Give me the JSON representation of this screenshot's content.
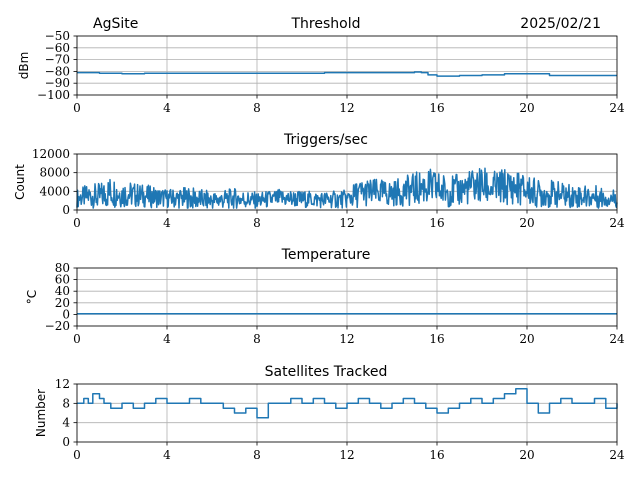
{
  "header": {
    "site": "AgSite",
    "date": "2025/02/21"
  },
  "colors": {
    "series": "#1f77b4",
    "grid": "#b0b0b0"
  },
  "chart_data": [
    {
      "type": "line",
      "title": "Threshold",
      "ylabel": "dBm",
      "xlim": [
        0,
        24
      ],
      "ylim": [
        -100,
        -50
      ],
      "xticks": [
        0,
        4,
        8,
        12,
        16,
        20,
        24
      ],
      "xtick_labels": [
        "0",
        "4",
        "8",
        "12",
        "16",
        "20",
        "24"
      ],
      "yticks": [
        -100,
        -90,
        -80,
        -70,
        -60,
        -50
      ],
      "ytick_labels": [
        "−100",
        "−90",
        "−80",
        "−70",
        "−60",
        "−50"
      ],
      "grid": true,
      "series": [
        {
          "x": [
            0,
            1,
            2,
            3,
            4,
            5,
            6,
            7,
            8,
            9,
            10,
            11,
            12,
            13,
            14,
            15,
            15.3,
            15.6,
            16,
            17,
            18,
            19,
            20,
            20.5,
            21,
            22,
            23,
            24
          ],
          "y": [
            -81,
            -81.5,
            -82,
            -81.5,
            -81.5,
            -81.5,
            -81.5,
            -81.5,
            -81.5,
            -81.5,
            -81.5,
            -81,
            -81,
            -81,
            -81,
            -80.5,
            -81,
            -83,
            -84,
            -83.5,
            -83,
            -82,
            -82,
            -82,
            -83.5,
            -83.5,
            -83.5,
            -83.5
          ]
        }
      ]
    },
    {
      "type": "line",
      "title": "Triggers/sec",
      "ylabel": "Count",
      "xlim": [
        0,
        24
      ],
      "ylim": [
        0,
        12000
      ],
      "xticks": [
        0,
        4,
        8,
        12,
        16,
        20,
        24
      ],
      "xtick_labels": [
        "0",
        "4",
        "8",
        "12",
        "16",
        "20",
        "24"
      ],
      "yticks": [
        0,
        4000,
        8000,
        12000
      ],
      "ytick_labels": [
        "0",
        "4000",
        "8000",
        "12000"
      ],
      "grid": true,
      "series": [
        {
          "x": [
            0,
            0.5,
            1,
            1.5,
            2,
            3,
            4,
            5,
            6,
            7,
            8,
            9,
            10,
            11,
            12,
            12.5,
            13,
            14,
            15,
            15.5,
            16,
            16.5,
            17,
            17.5,
            18,
            18.5,
            19,
            19.5,
            20,
            20.5,
            21,
            22,
            23,
            24
          ],
          "y": [
            2500,
            3000,
            2800,
            4000,
            3500,
            3000,
            2500,
            2500,
            2000,
            2500,
            2000,
            2500,
            2300,
            2200,
            2300,
            3500,
            3800,
            3500,
            4500,
            5000,
            4500,
            4000,
            4200,
            5000,
            5200,
            4500,
            5000,
            4800,
            4200,
            3500,
            3500,
            3000,
            2800,
            2500
          ],
          "spread": [
            2000,
            2500,
            3000,
            3500,
            3000,
            2500,
            2000,
            2500,
            2000,
            2200,
            1800,
            2000,
            1800,
            1800,
            2000,
            3000,
            3000,
            2800,
            3500,
            4000,
            4000,
            3500,
            3500,
            3800,
            4200,
            3800,
            4000,
            3800,
            3500,
            3000,
            3000,
            2500,
            2500,
            2000
          ]
        }
      ]
    },
    {
      "type": "line",
      "title": "Temperature",
      "ylabel": "°C",
      "xlim": [
        0,
        24
      ],
      "ylim": [
        -20,
        80
      ],
      "xticks": [
        0,
        4,
        8,
        12,
        16,
        20,
        24
      ],
      "xtick_labels": [
        "0",
        "4",
        "8",
        "12",
        "16",
        "20",
        "24"
      ],
      "yticks": [
        -20,
        0,
        20,
        40,
        60,
        80
      ],
      "ytick_labels": [
        "−20",
        "0",
        "20",
        "40",
        "60",
        "80"
      ],
      "grid": true,
      "series": [
        {
          "x": [
            0,
            24
          ],
          "y": [
            1,
            1
          ]
        }
      ]
    },
    {
      "type": "line",
      "title": "Satellites Tracked",
      "ylabel": "Number",
      "xlim": [
        0,
        24
      ],
      "ylim": [
        0,
        12
      ],
      "xticks": [
        0,
        4,
        8,
        12,
        16,
        20,
        24
      ],
      "xtick_labels": [
        "0",
        "4",
        "8",
        "12",
        "16",
        "20",
        "24"
      ],
      "yticks": [
        0,
        4,
        8,
        12
      ],
      "ytick_labels": [
        "0",
        "4",
        "8",
        "12"
      ],
      "grid": true,
      "series": [
        {
          "x": [
            0,
            0.3,
            0.5,
            0.7,
            1,
            1.2,
            1.5,
            2,
            2.5,
            3,
            3.5,
            4,
            4.5,
            5,
            5.5,
            6,
            6.5,
            7,
            7.5,
            8,
            8.5,
            9,
            9.5,
            10,
            10.5,
            11,
            11.5,
            12,
            12.5,
            13,
            13.5,
            14,
            14.5,
            15,
            15.5,
            16,
            16.5,
            17,
            17.5,
            18,
            18.5,
            19,
            19.5,
            20,
            20.5,
            21,
            21.5,
            22,
            22.5,
            23,
            23.5,
            24
          ],
          "y": [
            8,
            9,
            8,
            10,
            9,
            8,
            7,
            8,
            7,
            8,
            9,
            8,
            8,
            9,
            8,
            8,
            7,
            6,
            7,
            5,
            8,
            8,
            9,
            8,
            9,
            8,
            7,
            8,
            9,
            8,
            7,
            8,
            9,
            8,
            7,
            6,
            7,
            8,
            9,
            8,
            9,
            10,
            11,
            8,
            6,
            8,
            9,
            8,
            8,
            9,
            7,
            8
          ]
        }
      ]
    }
  ]
}
